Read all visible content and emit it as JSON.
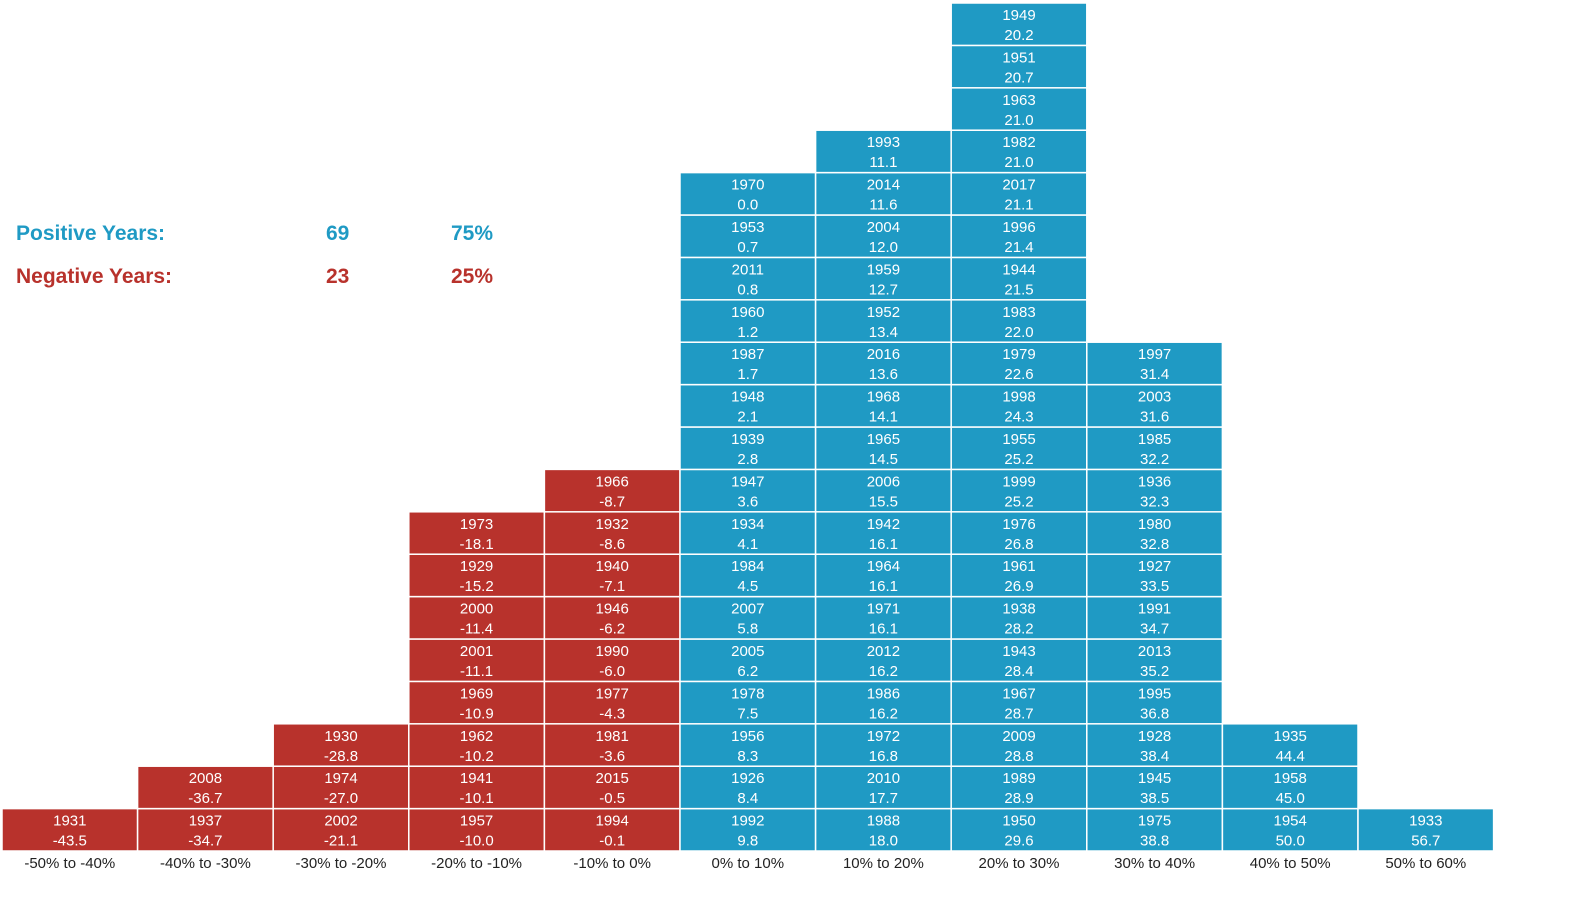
{
  "summary": {
    "positive": {
      "label": "Positive Years:",
      "count": "69",
      "percent": "75%"
    },
    "negative": {
      "label": "Negative Years:",
      "count": "23",
      "percent": "25%"
    }
  },
  "colors": {
    "positive": "#1f9ac4",
    "negative": "#b8322c",
    "positive_text": "#1f9ac4",
    "negative_text": "#b8322c"
  },
  "chart_data": {
    "type": "table",
    "title": "",
    "xlabel": "",
    "ylabel": "",
    "categories": [
      "-50% to -40%",
      "-40% to -30%",
      "-30% to -20%",
      "-20% to -10%",
      "-10% to 0%",
      "0% to 10%",
      "10% to 20%",
      "20% to 30%",
      "30% to 40%",
      "40% to 50%",
      "50% to 60%"
    ],
    "bins": [
      {
        "category": "-50% to -40%",
        "sign": "negative",
        "years": [
          {
            "year": "1931",
            "value": "-43.5"
          }
        ]
      },
      {
        "category": "-40% to -30%",
        "sign": "negative",
        "years": [
          {
            "year": "1937",
            "value": "-34.7"
          },
          {
            "year": "2008",
            "value": "-36.7"
          }
        ]
      },
      {
        "category": "-30% to -20%",
        "sign": "negative",
        "years": [
          {
            "year": "2002",
            "value": "-21.1"
          },
          {
            "year": "1974",
            "value": "-27.0"
          },
          {
            "year": "1930",
            "value": "-28.8"
          }
        ]
      },
      {
        "category": "-20% to -10%",
        "sign": "negative",
        "years": [
          {
            "year": "1957",
            "value": "-10.0"
          },
          {
            "year": "1941",
            "value": "-10.1"
          },
          {
            "year": "1962",
            "value": "-10.2"
          },
          {
            "year": "1969",
            "value": "-10.9"
          },
          {
            "year": "2001",
            "value": "-11.1"
          },
          {
            "year": "2000",
            "value": "-11.4"
          },
          {
            "year": "1929",
            "value": "-15.2"
          },
          {
            "year": "1973",
            "value": "-18.1"
          }
        ]
      },
      {
        "category": "-10% to 0%",
        "sign": "negative",
        "years": [
          {
            "year": "1994",
            "value": "-0.1"
          },
          {
            "year": "2015",
            "value": "-0.5"
          },
          {
            "year": "1981",
            "value": "-3.6"
          },
          {
            "year": "1977",
            "value": "-4.3"
          },
          {
            "year": "1990",
            "value": "-6.0"
          },
          {
            "year": "1946",
            "value": "-6.2"
          },
          {
            "year": "1940",
            "value": "-7.1"
          },
          {
            "year": "1932",
            "value": "-8.6"
          },
          {
            "year": "1966",
            "value": "-8.7"
          }
        ]
      },
      {
        "category": "0% to 10%",
        "sign": "positive",
        "years": [
          {
            "year": "1992",
            "value": "9.8"
          },
          {
            "year": "1926",
            "value": "8.4"
          },
          {
            "year": "1956",
            "value": "8.3"
          },
          {
            "year": "1978",
            "value": "7.5"
          },
          {
            "year": "2005",
            "value": "6.2"
          },
          {
            "year": "2007",
            "value": "5.8"
          },
          {
            "year": "1984",
            "value": "4.5"
          },
          {
            "year": "1934",
            "value": "4.1"
          },
          {
            "year": "1947",
            "value": "3.6"
          },
          {
            "year": "1939",
            "value": "2.8"
          },
          {
            "year": "1948",
            "value": "2.1"
          },
          {
            "year": "1987",
            "value": "1.7"
          },
          {
            "year": "1960",
            "value": "1.2"
          },
          {
            "year": "2011",
            "value": "0.8"
          },
          {
            "year": "1953",
            "value": "0.7"
          },
          {
            "year": "1970",
            "value": "0.0"
          }
        ]
      },
      {
        "category": "10% to 20%",
        "sign": "positive",
        "years": [
          {
            "year": "1988",
            "value": "18.0"
          },
          {
            "year": "2010",
            "value": "17.7"
          },
          {
            "year": "1972",
            "value": "16.8"
          },
          {
            "year": "1986",
            "value": "16.2"
          },
          {
            "year": "2012",
            "value": "16.2"
          },
          {
            "year": "1971",
            "value": "16.1"
          },
          {
            "year": "1964",
            "value": "16.1"
          },
          {
            "year": "1942",
            "value": "16.1"
          },
          {
            "year": "2006",
            "value": "15.5"
          },
          {
            "year": "1965",
            "value": "14.5"
          },
          {
            "year": "1968",
            "value": "14.1"
          },
          {
            "year": "2016",
            "value": "13.6"
          },
          {
            "year": "1952",
            "value": "13.4"
          },
          {
            "year": "1959",
            "value": "12.7"
          },
          {
            "year": "2004",
            "value": "12.0"
          },
          {
            "year": "2014",
            "value": "11.6"
          },
          {
            "year": "1993",
            "value": "11.1"
          }
        ]
      },
      {
        "category": "20% to 30%",
        "sign": "positive",
        "years": [
          {
            "year": "1950",
            "value": "29.6"
          },
          {
            "year": "1989",
            "value": "28.9"
          },
          {
            "year": "2009",
            "value": "28.8"
          },
          {
            "year": "1967",
            "value": "28.7"
          },
          {
            "year": "1943",
            "value": "28.4"
          },
          {
            "year": "1938",
            "value": "28.2"
          },
          {
            "year": "1961",
            "value": "26.9"
          },
          {
            "year": "1976",
            "value": "26.8"
          },
          {
            "year": "1999",
            "value": "25.2"
          },
          {
            "year": "1955",
            "value": "25.2"
          },
          {
            "year": "1998",
            "value": "24.3"
          },
          {
            "year": "1979",
            "value": "22.6"
          },
          {
            "year": "1983",
            "value": "22.0"
          },
          {
            "year": "1944",
            "value": "21.5"
          },
          {
            "year": "1996",
            "value": "21.4"
          },
          {
            "year": "2017",
            "value": "21.1"
          },
          {
            "year": "1982",
            "value": "21.0"
          },
          {
            "year": "1963",
            "value": "21.0"
          },
          {
            "year": "1951",
            "value": "20.7"
          },
          {
            "year": "1949",
            "value": "20.2"
          }
        ]
      },
      {
        "category": "30% to 40%",
        "sign": "positive",
        "years": [
          {
            "year": "1975",
            "value": "38.8"
          },
          {
            "year": "1945",
            "value": "38.5"
          },
          {
            "year": "1928",
            "value": "38.4"
          },
          {
            "year": "1995",
            "value": "36.8"
          },
          {
            "year": "2013",
            "value": "35.2"
          },
          {
            "year": "1991",
            "value": "34.7"
          },
          {
            "year": "1927",
            "value": "33.5"
          },
          {
            "year": "1980",
            "value": "32.8"
          },
          {
            "year": "1936",
            "value": "32.3"
          },
          {
            "year": "1985",
            "value": "32.2"
          },
          {
            "year": "2003",
            "value": "31.6"
          },
          {
            "year": "1997",
            "value": "31.4"
          }
        ]
      },
      {
        "category": "40% to 50%",
        "sign": "positive",
        "years": [
          {
            "year": "1954",
            "value": "50.0"
          },
          {
            "year": "1958",
            "value": "45.0"
          },
          {
            "year": "1935",
            "value": "44.4"
          }
        ]
      },
      {
        "category": "50% to 60%",
        "sign": "positive",
        "years": [
          {
            "year": "1933",
            "value": "56.7"
          }
        ]
      }
    ]
  }
}
